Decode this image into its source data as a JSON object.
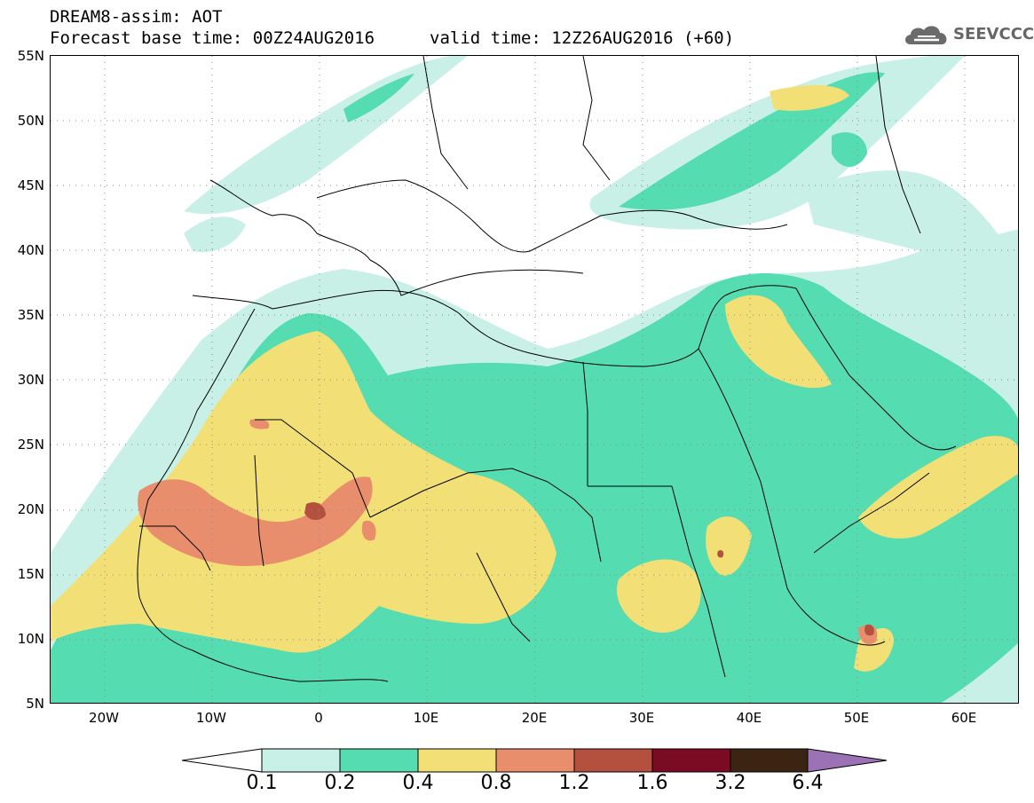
{
  "header": {
    "title_line1": "DREAM8-assim: AOT",
    "title_line2": "Forecast base time: 00Z24AUG2016",
    "title_line2_valid": "valid time: 12Z26AUG2016 (+60)",
    "logo_text": "SEEVCCC",
    "logo_icon": "cloud-icon"
  },
  "map": {
    "lat_labels": [
      "55N",
      "50N",
      "45N",
      "40N",
      "35N",
      "30N",
      "25N",
      "20N",
      "15N",
      "10N",
      "5N"
    ],
    "lon_labels": [
      "20W",
      "10W",
      "0",
      "10E",
      "20E",
      "30E",
      "40E",
      "50E",
      "60E"
    ],
    "lon_range": [
      -25,
      65
    ],
    "lat_range": [
      5,
      55
    ],
    "grid": "dotted"
  },
  "colorbar": {
    "labels": [
      "0.1",
      "0.2",
      "0.4",
      "0.8",
      "1.2",
      "1.6",
      "3.2",
      "6.4"
    ],
    "colors": [
      "#ffffff",
      "#c9f0e6",
      "#55dcb0",
      "#f2e076",
      "#e88e6c",
      "#b3503e",
      "#7a0b22",
      "#3b2512",
      "#9b72b6"
    ]
  },
  "field_colors": {
    "c1": "#c9f0e6",
    "c2": "#55dcb0",
    "c3": "#f2e076",
    "c4": "#e88e6c",
    "c5": "#b3503e",
    "c6": "#7a0b22"
  }
}
